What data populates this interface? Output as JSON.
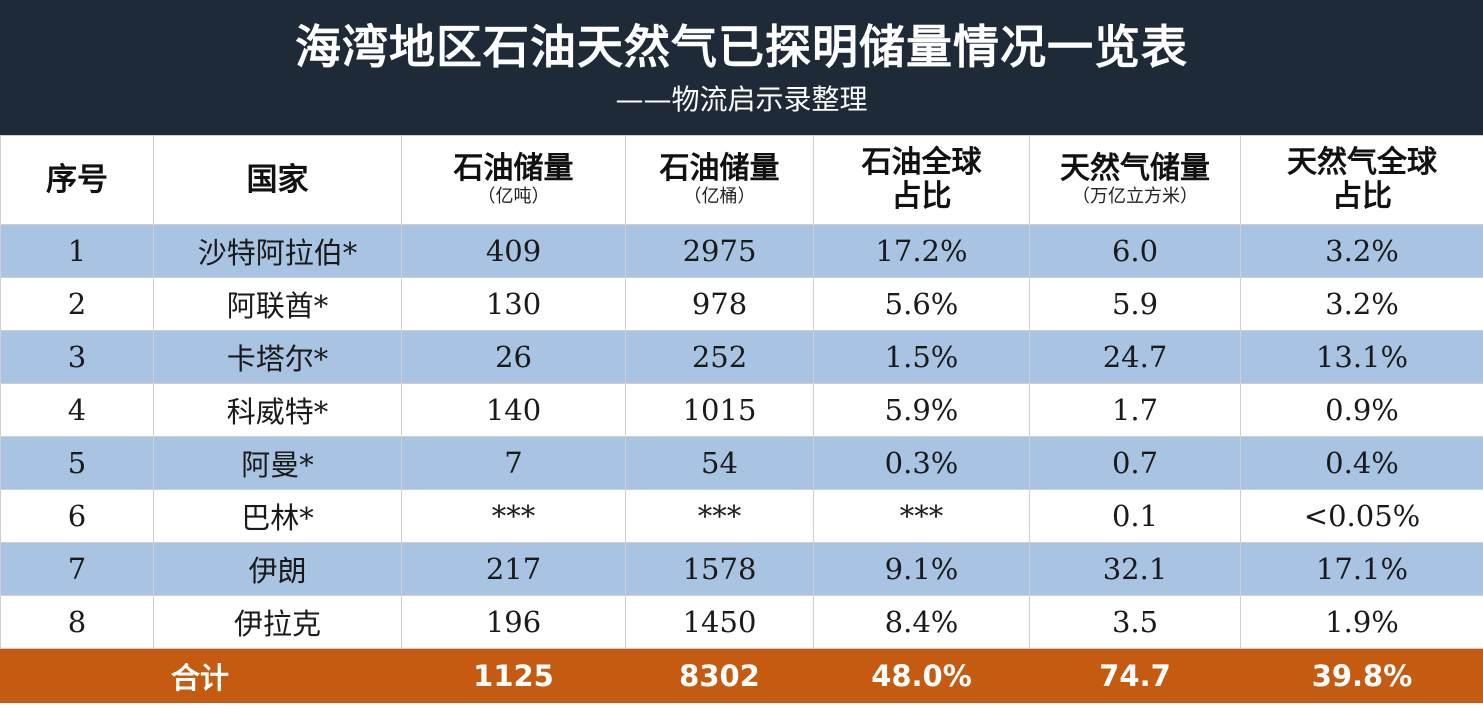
{
  "title": "海湾地区石油天然气已探明储量情况一览表",
  "subtitle": "——物流启示录整理",
  "colors": {
    "header_bg": "#1f2a38",
    "stripe": "#a9c4e2",
    "total_bg": "#c55a11"
  },
  "columns": [
    {
      "label": "序号",
      "sub": ""
    },
    {
      "label": "国家",
      "sub": ""
    },
    {
      "label": "石油储量",
      "sub": "（亿吨）"
    },
    {
      "label": "石油储量",
      "sub": "（亿桶）"
    },
    {
      "label": "石油全球",
      "sub": "占比"
    },
    {
      "label": "天然气储量",
      "sub": "（万亿立方米）"
    },
    {
      "label": "天然气全球",
      "sub": "占比"
    }
  ],
  "rows": [
    [
      "1",
      "沙特阿拉伯*",
      "409",
      "2975",
      "17.2%",
      "6.0",
      "3.2%"
    ],
    [
      "2",
      "阿联酋*",
      "130",
      "978",
      "5.6%",
      "5.9",
      "3.2%"
    ],
    [
      "3",
      "卡塔尔*",
      "26",
      "252",
      "1.5%",
      "24.7",
      "13.1%"
    ],
    [
      "4",
      "科威特*",
      "140",
      "1015",
      "5.9%",
      "1.7",
      "0.9%"
    ],
    [
      "5",
      "阿曼*",
      "7",
      "54",
      "0.3%",
      "0.7",
      "0.4%"
    ],
    [
      "6",
      "巴林*",
      "***",
      "***",
      "***",
      "0.1",
      "<0.05%"
    ],
    [
      "7",
      "伊朗",
      "217",
      "1578",
      "9.1%",
      "32.1",
      "17.1%"
    ],
    [
      "8",
      "伊拉克",
      "196",
      "1450",
      "8.4%",
      "3.5",
      "1.9%"
    ]
  ],
  "total": {
    "label": "合计",
    "values": [
      "1125",
      "8302",
      "48.0%",
      "74.7",
      "39.8%"
    ]
  }
}
